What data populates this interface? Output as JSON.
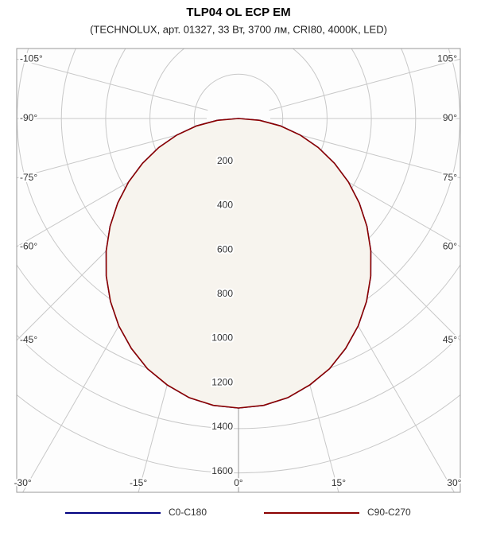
{
  "chart_data": {
    "type": "polar",
    "title": "TLP04 OL ECP EM",
    "subtitle": "(TECHNOLUX, арт. 01327, 33 Вт, 3700 лм, CRI80, 4000K, LED)",
    "angles": [
      -90,
      -85,
      -80,
      -75,
      -70,
      -65,
      -60,
      -55,
      -50,
      -45,
      -40,
      -35,
      -30,
      -25,
      -20,
      -15,
      -10,
      -5,
      0,
      5,
      10,
      15,
      20,
      25,
      30,
      35,
      40,
      45,
      50,
      55,
      60,
      65,
      70,
      75,
      80,
      85,
      90
    ],
    "series": [
      {
        "name": "C0-C180",
        "color": "#00007f",
        "values": [
          0,
          96,
          192,
          288,
          383,
          478,
          573,
          666,
          757,
          845,
          929,
          1008,
          1081,
          1145,
          1202,
          1245,
          1280,
          1300,
          1307,
          1300,
          1280,
          1245,
          1202,
          1145,
          1081,
          1008,
          929,
          845,
          757,
          666,
          573,
          478,
          383,
          288,
          192,
          96,
          0
        ]
      },
      {
        "name": "C90-C270",
        "color": "#8b0000",
        "values": [
          0,
          96,
          192,
          288,
          383,
          478,
          573,
          666,
          757,
          845,
          929,
          1008,
          1081,
          1145,
          1202,
          1245,
          1280,
          1300,
          1307,
          1300,
          1280,
          1245,
          1202,
          1145,
          1081,
          1008,
          929,
          845,
          757,
          666,
          573,
          478,
          383,
          288,
          192,
          96,
          0
        ]
      }
    ],
    "rlim": [
      0,
      1600
    ],
    "rticks": [
      200,
      400,
      600,
      800,
      1000,
      1200,
      1400,
      1600
    ],
    "angleticks": [
      {
        "value": -105,
        "label": "-105°"
      },
      {
        "value": -90,
        "label": "-90°"
      },
      {
        "value": -75,
        "label": "-75°"
      },
      {
        "value": -60,
        "label": "-60°"
      },
      {
        "value": -45,
        "label": "-45°"
      },
      {
        "value": -30,
        "label": "-30°"
      },
      {
        "value": -15,
        "label": "-15°"
      },
      {
        "value": 0,
        "label": "0°"
      },
      {
        "value": 15,
        "label": "15°"
      },
      {
        "value": 30,
        "label": "30°"
      },
      {
        "value": 45,
        "label": "45°"
      },
      {
        "value": 60,
        "label": "60°"
      },
      {
        "value": 75,
        "label": "75°"
      },
      {
        "value": 90,
        "label": "90°"
      },
      {
        "value": 105,
        "label": "105°"
      }
    ],
    "fill": "#f7f4ee"
  }
}
